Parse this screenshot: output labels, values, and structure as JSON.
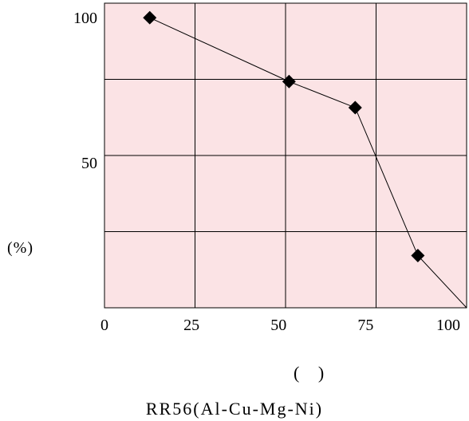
{
  "chart_data": {
    "type": "line",
    "x": [
      13,
      53,
      72,
      90,
      104
    ],
    "values": [
      100,
      78,
      69,
      18,
      0
    ],
    "markers": [
      true,
      true,
      true,
      true,
      false
    ],
    "xlim": [
      0,
      104
    ],
    "ylim": [
      0,
      105
    ],
    "xticks": [
      "0",
      "25",
      "50",
      "75",
      "100"
    ],
    "xtick_values": [
      0,
      25,
      50,
      75,
      100
    ],
    "yticks": [
      "100",
      "50"
    ],
    "ytick_values": [
      100,
      50
    ],
    "ylabel": "(%)",
    "xlabel": "(    )",
    "caption": "RR56(Al-Cu-Mg-Ni)",
    "grid": true,
    "colors": {
      "plot_bg": "#fbe3e5",
      "grid": "#000000",
      "line": "#000000",
      "marker": "#000000"
    }
  }
}
